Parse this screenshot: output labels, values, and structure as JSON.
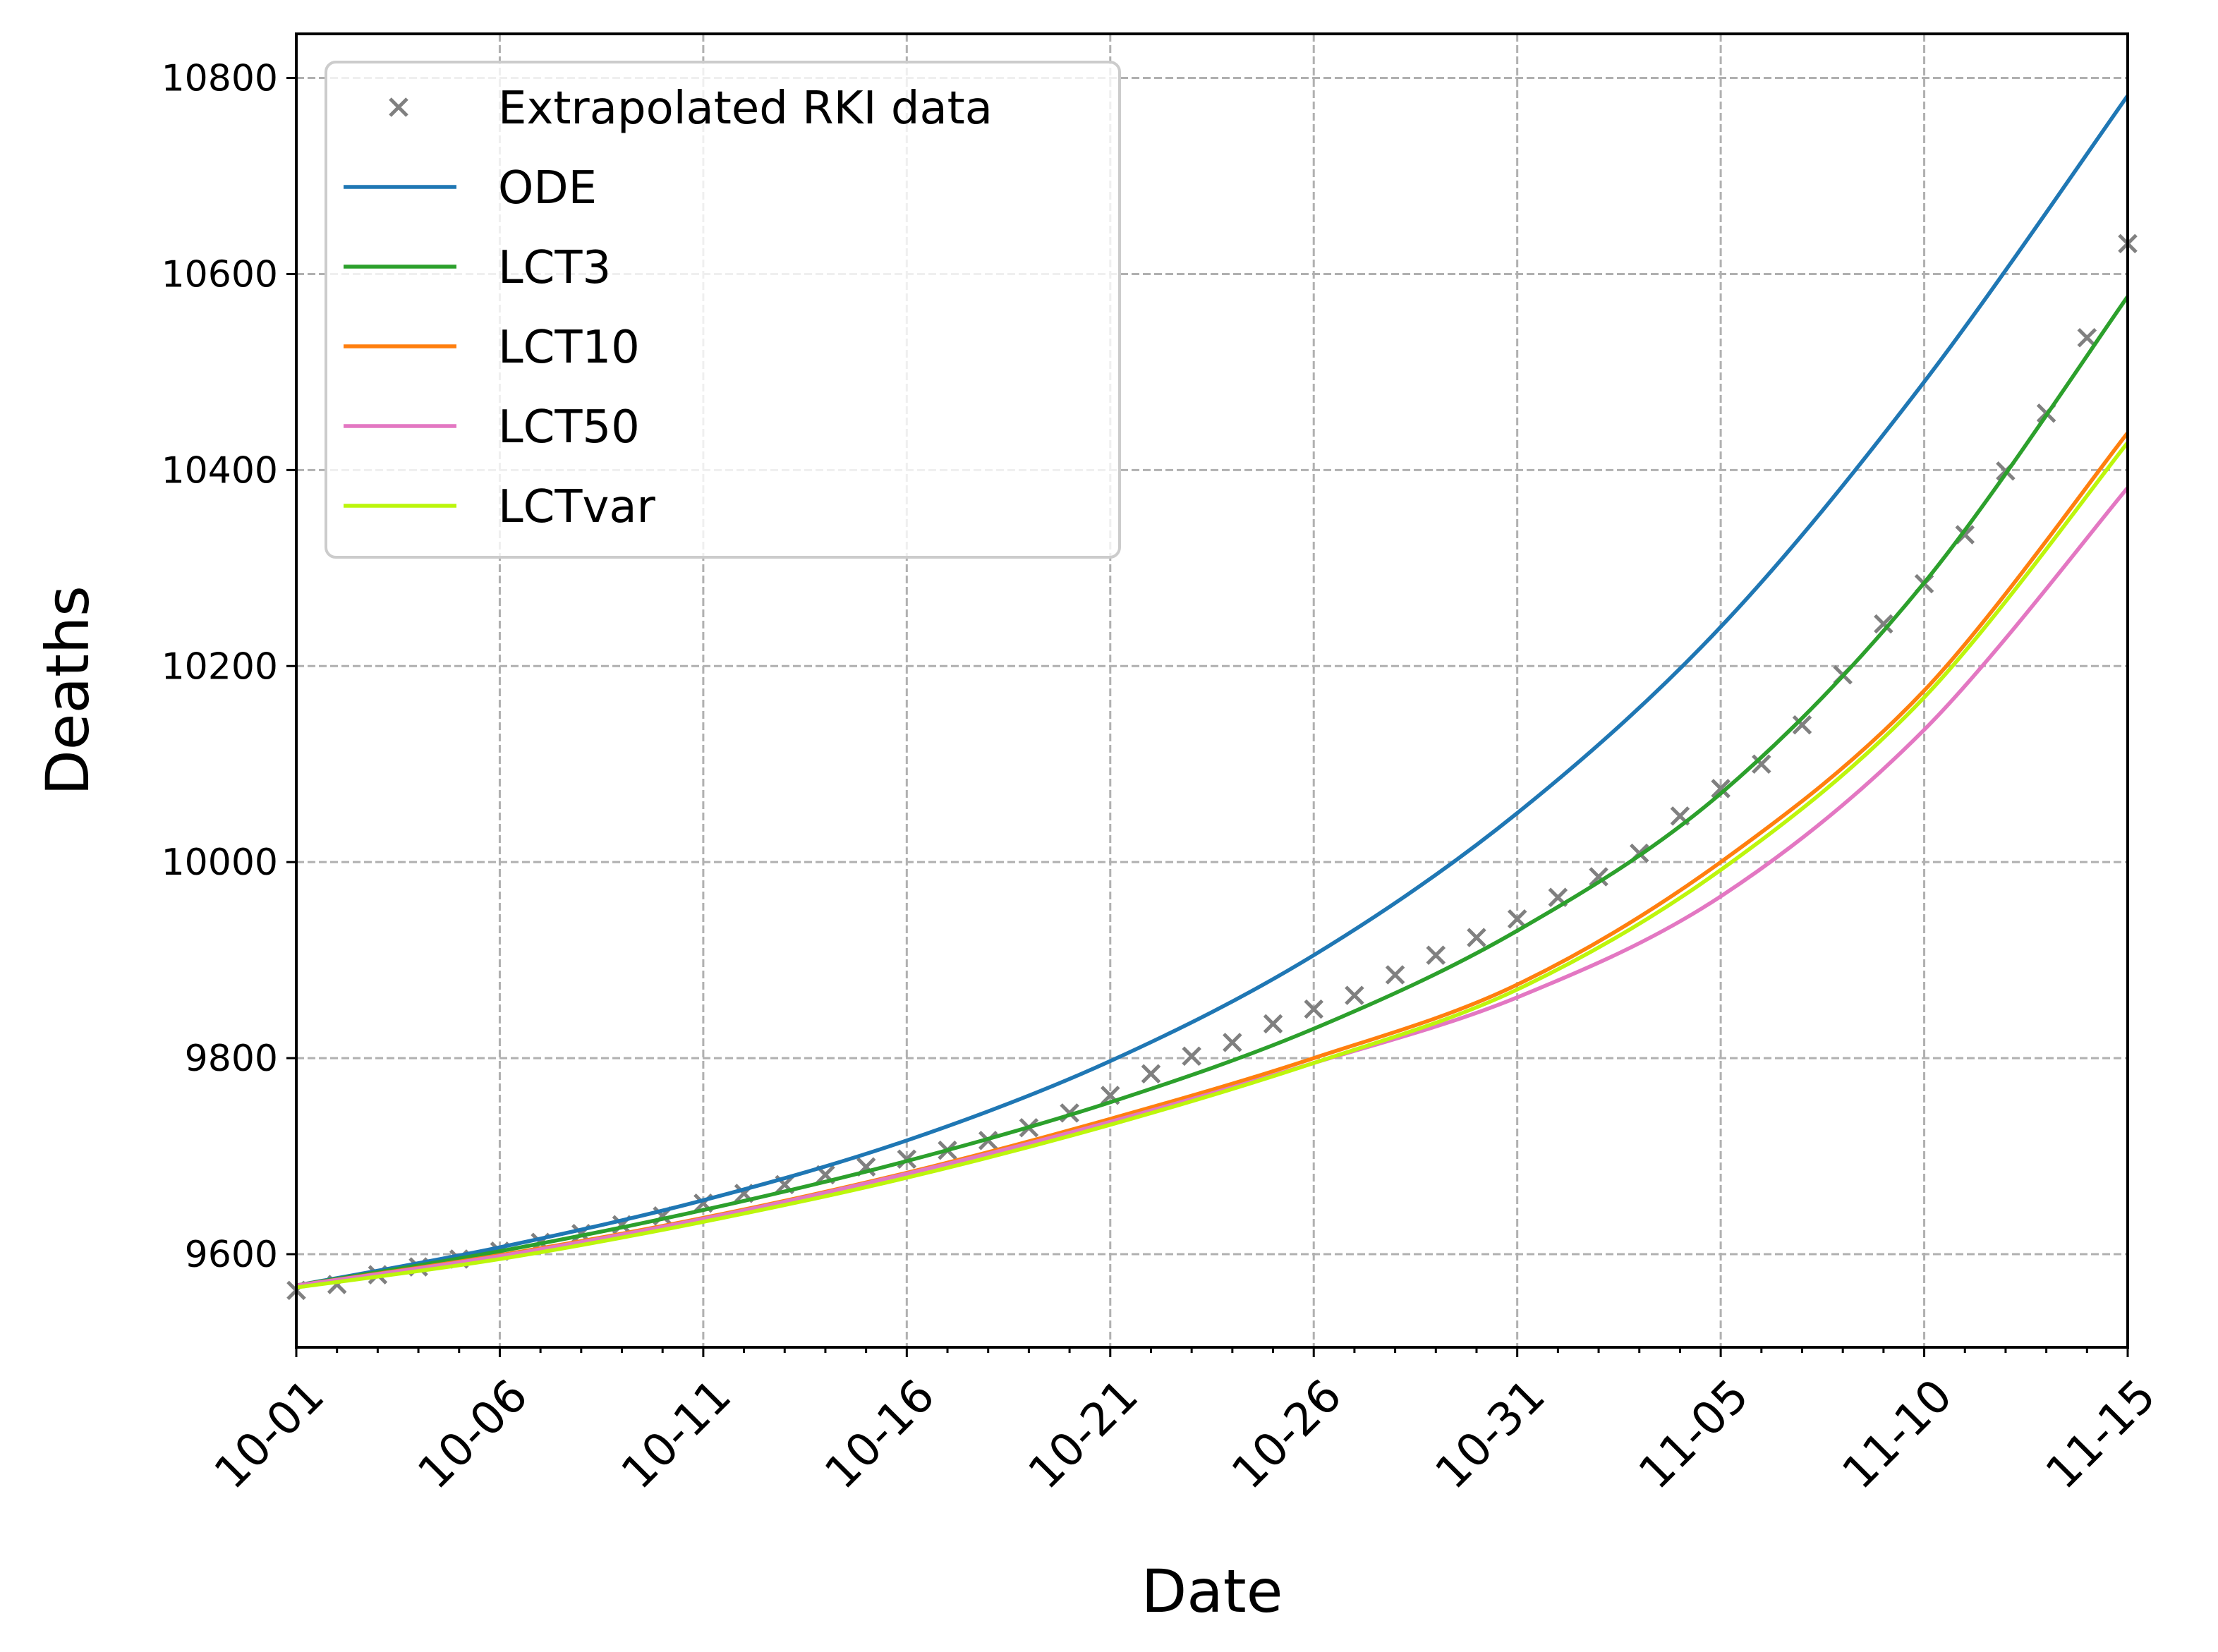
{
  "chart_data": {
    "type": "line",
    "title": "",
    "xlabel": "Date",
    "ylabel": "Deaths",
    "x_range_days": [
      0,
      45
    ],
    "ylim": [
      9505,
      10845
    ],
    "grid": true,
    "legend_position": "top-left",
    "x_ticks": [
      {
        "day": 0,
        "label": "10-01"
      },
      {
        "day": 5,
        "label": "10-06"
      },
      {
        "day": 10,
        "label": "10-11"
      },
      {
        "day": 15,
        "label": "10-16"
      },
      {
        "day": 20,
        "label": "10-21"
      },
      {
        "day": 25,
        "label": "10-26"
      },
      {
        "day": 30,
        "label": "10-31"
      },
      {
        "day": 35,
        "label": "11-05"
      },
      {
        "day": 40,
        "label": "11-10"
      },
      {
        "day": 45,
        "label": "11-15"
      }
    ],
    "y_ticks": [
      {
        "value": 9600,
        "label": "9600"
      },
      {
        "value": 9800,
        "label": "9800"
      },
      {
        "value": 10000,
        "label": "10000"
      },
      {
        "value": 10200,
        "label": "10200"
      },
      {
        "value": 10400,
        "label": "10400"
      },
      {
        "value": 10600,
        "label": "10600"
      },
      {
        "value": 10800,
        "label": "10800"
      }
    ],
    "x": [
      0,
      5,
      10,
      15,
      20,
      25,
      30,
      35,
      40,
      45
    ],
    "series": [
      {
        "name": "ODE",
        "color": "#1f77b4",
        "values": [
          9568,
          9607,
          9655,
          9716,
          9797,
          9905,
          10050,
          10240,
          10490,
          10782
        ]
      },
      {
        "name": "LCT3",
        "color": "#2ca02c",
        "values": [
          9568,
          9603,
          9645,
          9695,
          9755,
          9830,
          9930,
          10070,
          10285,
          10577
        ]
      },
      {
        "name": "LCT10",
        "color": "#ff7f0e",
        "values": [
          9568,
          9599,
          9637,
          9683,
          9738,
          9800,
          9875,
          10000,
          10175,
          10438
        ]
      },
      {
        "name": "LCT50",
        "color": "#e377c2",
        "values": [
          9568,
          9598,
          9636,
          9682,
          9735,
          9795,
          9862,
          9965,
          10135,
          10382
        ]
      },
      {
        "name": "LCTvar",
        "color": "#bcf60c",
        "values": [
          9566,
          9595,
          9633,
          9678,
          9732,
          9795,
          9870,
          9992,
          10168,
          10428
        ]
      }
    ],
    "scatter": {
      "name": "Extrapolated RKI data",
      "color": "#808080",
      "marker": "x",
      "x": [
        0,
        1,
        2,
        3,
        4,
        5,
        6,
        7,
        8,
        9,
        10,
        11,
        12,
        13,
        14,
        15,
        16,
        17,
        18,
        19,
        20,
        21,
        22,
        23,
        24,
        25,
        26,
        27,
        28,
        29,
        30,
        31,
        32,
        33,
        34,
        35,
        36,
        37,
        38,
        39,
        40,
        41,
        42,
        43,
        44,
        45
      ],
      "y": [
        9563,
        9569,
        9579,
        9587,
        9595,
        9603,
        9612,
        9621,
        9630,
        9639,
        9652,
        9662,
        9671,
        9681,
        9689,
        9697,
        9706,
        9716,
        9729,
        9744,
        9762,
        9784,
        9802,
        9816,
        9835,
        9850,
        9864,
        9885,
        9905,
        9923,
        9942,
        9964,
        9985,
        10009,
        10047,
        10075,
        10100,
        10140,
        10191,
        10243,
        10284,
        10334,
        10399,
        10458,
        10535,
        10631
      ]
    }
  }
}
